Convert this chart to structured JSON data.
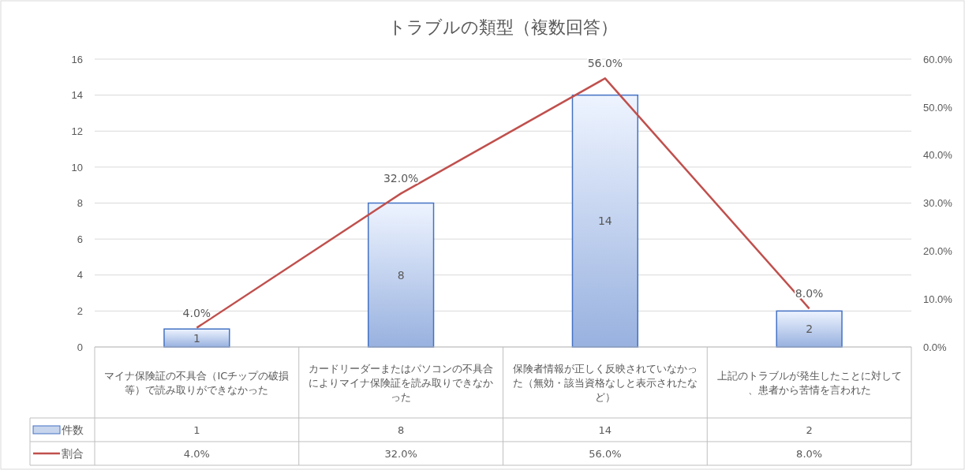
{
  "chart_data": {
    "type": "bar",
    "title": "トラブルの類型（複数回答）",
    "categories": [
      "マイナ保険証の不具合（ICチップの破損等）で読み取りができなかった",
      "カードリーダーまたはパソコンの不具合によりマイナ保険証を読み取りできなかった",
      "保険者情報が正しく反映されていなかった（無効・該当資格なしと表示されたなど）",
      "上記のトラブルが発生したことに対して、患者から苦情を言われた"
    ],
    "series": [
      {
        "name": "件数",
        "color": "#4472c4",
        "values": [
          1,
          8,
          14,
          2
        ],
        "value_labels": [
          "1",
          "8",
          "14",
          "2"
        ]
      },
      {
        "name": "割合",
        "type": "line",
        "axis": "y2",
        "color": "#c0504d",
        "values": [
          4,
          32,
          56,
          8
        ],
        "value_labels": [
          "4.0%",
          "32.0%",
          "56.0%",
          "8.0%"
        ]
      }
    ],
    "ylim": [
      0,
      16
    ],
    "yticks": [
      0,
      2,
      4,
      6,
      8,
      10,
      12,
      14,
      16
    ],
    "y2lim": [
      0,
      60
    ],
    "y2ticks": [
      {
        "value": 0,
        "label": "0.0%"
      },
      {
        "value": 10,
        "label": "10.0%"
      },
      {
        "value": 20,
        "label": "20.0%"
      },
      {
        "value": 30,
        "label": "30.0%"
      },
      {
        "value": 40,
        "label": "40.0%"
      },
      {
        "value": 50,
        "label": "50.0%"
      },
      {
        "value": 60,
        "label": "60.0%"
      }
    ],
    "grid": "y",
    "legend": "bottom",
    "marker": "none",
    "line_style": "solid"
  }
}
